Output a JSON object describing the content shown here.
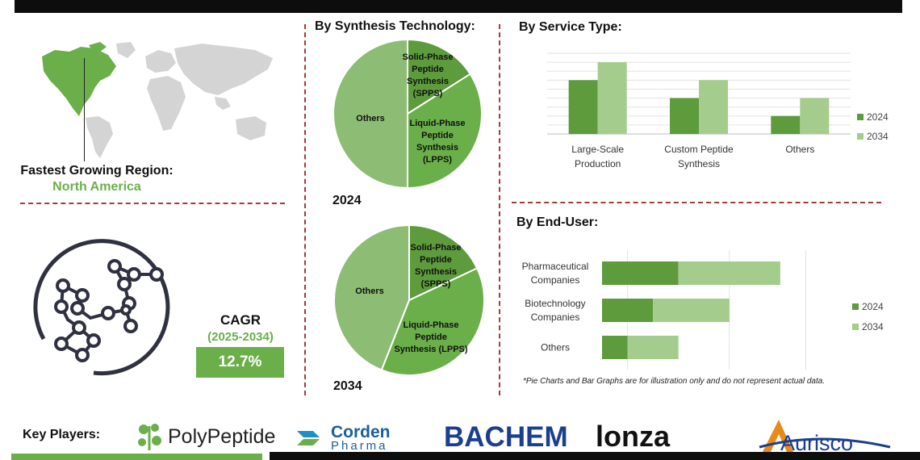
{
  "region": {
    "label": "Fastest Growing Region:",
    "value": "North America"
  },
  "cagr": {
    "title": "CAGR",
    "years": "(2025-2034)",
    "value": "12.7%"
  },
  "headings": {
    "synthesis": "By Synthesis Technology:",
    "service": "By Service Type:",
    "enduser": "By End-User:"
  },
  "key_players": {
    "label": "Key Players:",
    "logos": [
      "PolyPeptide",
      "Corden",
      "Pharma",
      "BACHEM",
      "Lonza",
      "Aurisco"
    ]
  },
  "note": "*Pie Charts and Bar Graphs are for illustration only and do not represent actual data.",
  "colors": {
    "dark_green": "#5d9b3c",
    "light_green": "#a4cc8c",
    "mid_green": "#8dbd74",
    "accent": "#6aaf4a",
    "divider": "#a63a3a"
  },
  "chart_data": [
    {
      "type": "pie",
      "year": "2024",
      "labels": [
        "Solid-Phase Peptide Synthesis (SPPS)",
        "Liquid-Phase Peptide Synthesis (LPPS)",
        "Others"
      ],
      "display_labels": [
        [
          "Solid-Phase",
          "Peptide",
          "Synthesis",
          "(SPPS)"
        ],
        [
          "Liquid-Phase",
          "Peptide",
          "Synthesis",
          "(LPPS)"
        ],
        [
          "Others"
        ]
      ],
      "values": [
        16,
        34,
        50
      ]
    },
    {
      "type": "pie",
      "year": "2034",
      "labels": [
        "Solid-Phase Peptide Synthesis (SPPS)",
        "Liquid-Phase Peptide Synthesis (LPPS)",
        "Others"
      ],
      "display_labels": [
        [
          "Solid-Phase",
          "Peptide",
          "Synthesis",
          "(SPPS)"
        ],
        [
          "Liquid-Phase",
          "Peptide",
          "Synthesis (LPPS)"
        ],
        [
          "Others"
        ]
      ],
      "values": [
        18,
        38,
        44
      ]
    },
    {
      "type": "bar",
      "categories": [
        "Large-Scale Production",
        "Custom Peptide Synthesis",
        "Others"
      ],
      "category_lines": [
        [
          "Large-Scale",
          "Production"
        ],
        [
          "Custom Peptide",
          "Synthesis"
        ],
        [
          "Others"
        ]
      ],
      "series": [
        {
          "name": "2024",
          "values": [
            3,
            2,
            1
          ]
        },
        {
          "name": "2034",
          "values": [
            4,
            3,
            2
          ]
        }
      ],
      "ylim": [
        0,
        4.5
      ]
    },
    {
      "type": "bar",
      "orientation": "horizontal",
      "stacked": true,
      "categories": [
        "Pharmaceutical Companies",
        "Biotechnology Companies",
        "Others"
      ],
      "category_lines": [
        [
          "Pharmaceutical",
          "Companies"
        ],
        [
          "Biotechnology",
          "Companies"
        ],
        [
          "Others"
        ]
      ],
      "series": [
        {
          "name": "2024",
          "values": [
            1.5,
            1.0,
            0.5
          ]
        },
        {
          "name": "2034",
          "values": [
            2.0,
            1.5,
            1.0
          ]
        }
      ],
      "xlim": [
        0,
        4.5
      ]
    }
  ]
}
